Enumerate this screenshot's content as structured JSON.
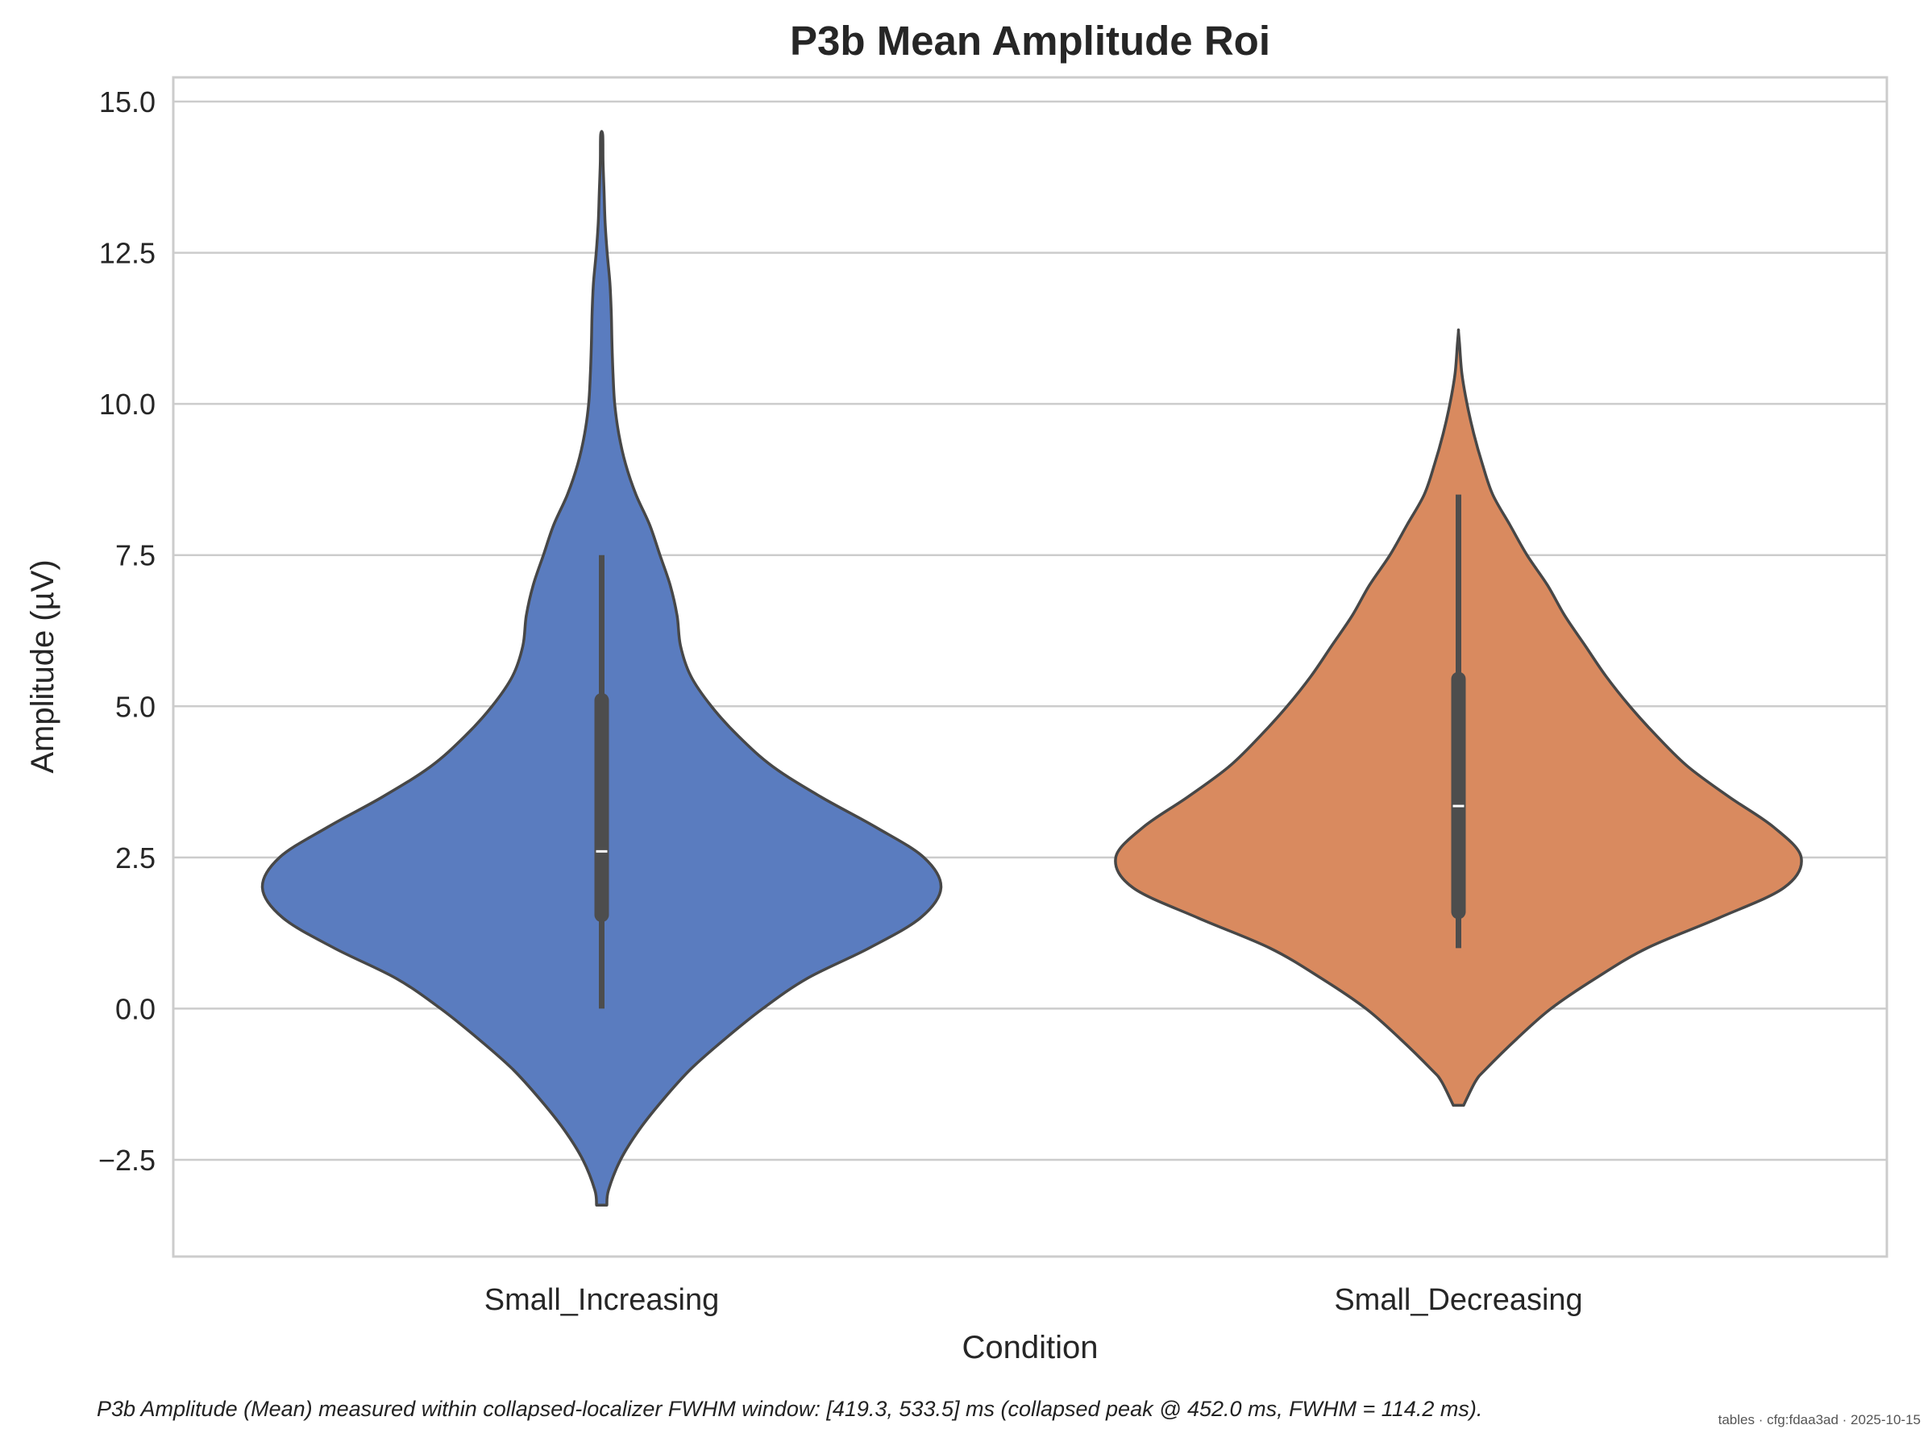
{
  "chart_data": {
    "type": "violin",
    "title": "P3b Mean Amplitude Roi",
    "xlabel": "Condition",
    "ylabel": "Amplitude (µV)",
    "ylim": [
      -4.1,
      15.4
    ],
    "yticks": [
      -2.5,
      0.0,
      2.5,
      5.0,
      7.5,
      10.0,
      12.5,
      15.0
    ],
    "ytick_labels": [
      "−2.5",
      "0.0",
      "2.5",
      "5.0",
      "7.5",
      "10.0",
      "12.5",
      "15.0"
    ],
    "grid": "horizontal",
    "categories": [
      "Small_Increasing",
      "Small_Decreasing"
    ],
    "colors": [
      "#5a7cbf",
      "#d98a5f"
    ],
    "series": [
      {
        "category": "Small_Increasing",
        "median": 2.6,
        "q1": 1.55,
        "q3": 5.1,
        "whisker_low": 0.0,
        "whisker_high": 7.5,
        "min": -3.25,
        "max": 14.45,
        "density": [
          [
            -3.25,
            0.015
          ],
          [
            -3.0,
            0.02
          ],
          [
            -2.5,
            0.055
          ],
          [
            -2.0,
            0.11
          ],
          [
            -1.5,
            0.18
          ],
          [
            -1.0,
            0.26
          ],
          [
            -0.5,
            0.36
          ],
          [
            0.0,
            0.47
          ],
          [
            0.5,
            0.6
          ],
          [
            1.0,
            0.78
          ],
          [
            1.5,
            0.93
          ],
          [
            2.0,
            0.99
          ],
          [
            2.5,
            0.94
          ],
          [
            3.0,
            0.8
          ],
          [
            3.5,
            0.64
          ],
          [
            4.0,
            0.5
          ],
          [
            4.5,
            0.4
          ],
          [
            5.0,
            0.32
          ],
          [
            5.5,
            0.26
          ],
          [
            6.0,
            0.23
          ],
          [
            6.5,
            0.22
          ],
          [
            7.0,
            0.2
          ],
          [
            7.5,
            0.17
          ],
          [
            8.0,
            0.14
          ],
          [
            8.5,
            0.1
          ],
          [
            9.0,
            0.07
          ],
          [
            9.5,
            0.05
          ],
          [
            10.0,
            0.038
          ],
          [
            10.5,
            0.033
          ],
          [
            11.0,
            0.03
          ],
          [
            11.5,
            0.028
          ],
          [
            12.0,
            0.024
          ],
          [
            12.5,
            0.016
          ],
          [
            13.0,
            0.01
          ],
          [
            13.5,
            0.007
          ],
          [
            14.0,
            0.004
          ],
          [
            14.45,
            0.003
          ]
        ]
      },
      {
        "category": "Small_Decreasing",
        "median": 3.35,
        "q1": 1.6,
        "q3": 5.45,
        "whisker_low": 1.0,
        "whisker_high": 8.5,
        "min": -1.6,
        "max": 11.2,
        "density": [
          [
            -1.6,
            0.015
          ],
          [
            -1.2,
            0.05
          ],
          [
            -1.0,
            0.08
          ],
          [
            -0.5,
            0.17
          ],
          [
            0.0,
            0.27
          ],
          [
            0.5,
            0.4
          ],
          [
            1.0,
            0.55
          ],
          [
            1.5,
            0.76
          ],
          [
            2.0,
            0.95
          ],
          [
            2.5,
            1.0
          ],
          [
            3.0,
            0.92
          ],
          [
            3.5,
            0.79
          ],
          [
            4.0,
            0.67
          ],
          [
            4.5,
            0.58
          ],
          [
            5.0,
            0.5
          ],
          [
            5.5,
            0.43
          ],
          [
            6.0,
            0.37
          ],
          [
            6.5,
            0.31
          ],
          [
            7.0,
            0.26
          ],
          [
            7.5,
            0.2
          ],
          [
            8.0,
            0.15
          ],
          [
            8.5,
            0.1
          ],
          [
            9.0,
            0.07
          ],
          [
            9.5,
            0.045
          ],
          [
            10.0,
            0.025
          ],
          [
            10.5,
            0.01
          ],
          [
            11.0,
            0.003
          ],
          [
            11.2,
            0.0
          ]
        ]
      }
    ]
  },
  "caption": "P3b Amplitude (Mean) measured within collapsed-localizer FWHM window: [419.3, 533.5] ms (collapsed peak @ 452.0 ms, FWHM = 114.2 ms).",
  "stamp": "tables · cfg:fdaa3ad · 2025-10-15"
}
